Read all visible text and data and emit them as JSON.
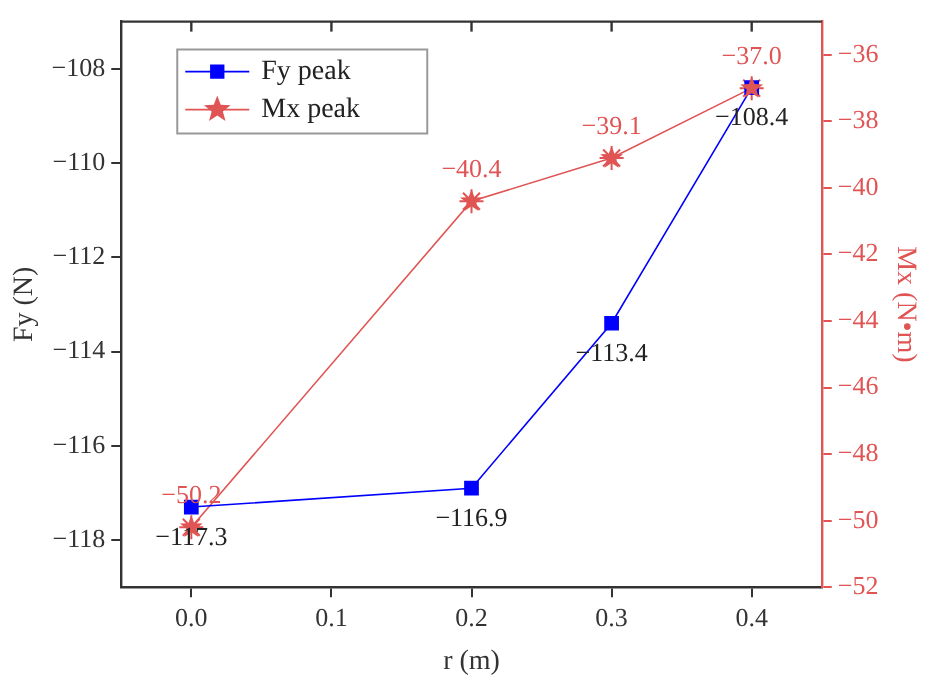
{
  "chart_data": {
    "type": "line",
    "xlabel": "r (m)",
    "ylabel": "Fy (N)",
    "y2label": "Mx (N•m)",
    "x": [
      0,
      0.2,
      0.3,
      0.4
    ],
    "series": [
      {
        "name": "Fy peak",
        "color": "#0000ff",
        "values": [
          -117.3,
          -116.9,
          -113.4,
          -108.4
        ],
        "value_labels": [
          "−117.3",
          "−116.9",
          "−113.4",
          "−108.4"
        ],
        "marker": "square"
      },
      {
        "name": "Mx peak",
        "color": "#e05454",
        "values": [
          -50.2,
          -40.4,
          -39.1,
          -37.0
        ],
        "value_labels": [
          "−50.2",
          "−40.4",
          "−39.1",
          "−37.0"
        ],
        "marker": "star",
        "axis": "y2"
      }
    ],
    "xlim": [
      -0.05,
      0.45
    ],
    "xticks": [
      {
        "value": 0,
        "label": "0.0"
      },
      0.1,
      0.2,
      0.3,
      0.4
    ],
    "ylim": [
      -119,
      -107
    ],
    "yticks": [
      -118,
      -116,
      -114,
      -112,
      -110,
      -108
    ],
    "y2lim": [
      -52,
      -35
    ],
    "y2ticks": [
      -52,
      -50,
      -48,
      -46,
      -44,
      -42,
      -40,
      -38,
      -36
    ],
    "grid": false,
    "legend": "top left"
  }
}
